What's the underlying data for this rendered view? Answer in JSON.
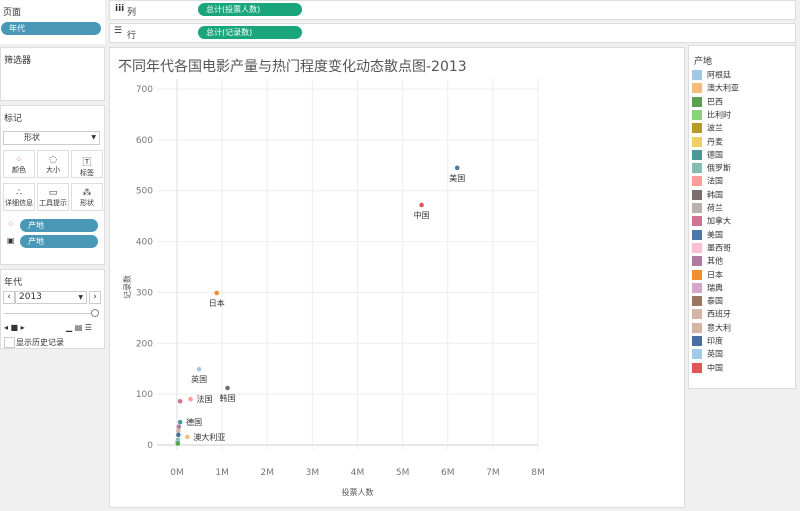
{
  "pages": {
    "title": "页面",
    "pill": "年代"
  },
  "columns": {
    "icon": "columns-icon",
    "label": "列",
    "pill": "总计(投票人数)"
  },
  "rows": {
    "icon": "rows-icon",
    "label": "行",
    "pill": "总计(记录数)"
  },
  "filters": {
    "title": "筛选器"
  },
  "marks": {
    "title": "标记",
    "type": "形状",
    "buttons": [
      "颜色",
      "大小",
      "标签",
      "详细信息",
      "工具提示",
      "形状"
    ],
    "pills": [
      "产地",
      "产地"
    ]
  },
  "year": {
    "title": "年代",
    "value": "2013",
    "history": "显示历史记录"
  },
  "legend": {
    "title": "产地",
    "items": [
      {
        "name": "阿根廷",
        "color": "#9fc8e6"
      },
      {
        "name": "澳大利亚",
        "color": "#f9bb7c"
      },
      {
        "name": "巴西",
        "color": "#59a14f"
      },
      {
        "name": "比利时",
        "color": "#8cd17d"
      },
      {
        "name": "波兰",
        "color": "#b6992d"
      },
      {
        "name": "丹麦",
        "color": "#f1ce63"
      },
      {
        "name": "德国",
        "color": "#499894"
      },
      {
        "name": "俄罗斯",
        "color": "#86bcb6"
      },
      {
        "name": "法国",
        "color": "#ff9d9a"
      },
      {
        "name": "韩国",
        "color": "#79706e"
      },
      {
        "name": "荷兰",
        "color": "#bab0ac"
      },
      {
        "name": "加拿大",
        "color": "#d37295"
      },
      {
        "name": "美国",
        "color": "#4e79a7"
      },
      {
        "name": "墨西哥",
        "color": "#fabfd2"
      },
      {
        "name": "其他",
        "color": "#b07aa1"
      },
      {
        "name": "日本",
        "color": "#f28e2b"
      },
      {
        "name": "瑞典",
        "color": "#d4a6c8"
      },
      {
        "name": "泰国",
        "color": "#9d7660"
      },
      {
        "name": "西班牙",
        "color": "#d7b5a6"
      },
      {
        "name": "意大利",
        "color": "#d4b4a4"
      },
      {
        "name": "印度",
        "color": "#4a6f9c"
      },
      {
        "name": "英国",
        "color": "#a0cbe8"
      },
      {
        "name": "中国",
        "color": "#e15759"
      }
    ]
  },
  "chart_data": {
    "type": "scatter",
    "title": "不同年代各国电影产量与热门程度变化动态散点图-2013",
    "xlabel": "投票人数",
    "ylabel": "记录数",
    "xlim": [
      0,
      8000000
    ],
    "ylim": [
      0,
      700
    ],
    "xticks": [
      "0M",
      "1M",
      "2M",
      "3M",
      "4M",
      "5M",
      "6M",
      "7M",
      "8M"
    ],
    "yticks": [
      "0",
      "100",
      "200",
      "300",
      "400",
      "500",
      "600",
      "700"
    ],
    "grid": true,
    "points": [
      {
        "name": "美国",
        "x": 6210000,
        "y": 545,
        "label": true
      },
      {
        "name": "中国",
        "x": 5420000,
        "y": 472,
        "label": true
      },
      {
        "name": "日本",
        "x": 880000,
        "y": 299,
        "label": true
      },
      {
        "name": "英国",
        "x": 490000,
        "y": 149,
        "label": true
      },
      {
        "name": "韩国",
        "x": 1120000,
        "y": 112,
        "label": true
      },
      {
        "name": "法国",
        "x": 300000,
        "y": 90,
        "label": true
      },
      {
        "name": "加拿大",
        "x": 70000,
        "y": 86,
        "label": false
      },
      {
        "name": "德国",
        "x": 70000,
        "y": 45,
        "label": true
      },
      {
        "name": "澳大利亚",
        "x": 230000,
        "y": 16,
        "label": true
      },
      {
        "name": "其他",
        "x": 40000,
        "y": 36,
        "label": false
      },
      {
        "name": "意大利",
        "x": 30000,
        "y": 28,
        "label": false
      },
      {
        "name": "印度",
        "x": 30000,
        "y": 20,
        "label": false
      },
      {
        "name": "俄罗斯",
        "x": 20000,
        "y": 10,
        "label": false
      },
      {
        "name": "阿根廷",
        "x": 10000,
        "y": 5,
        "label": false
      },
      {
        "name": "巴西",
        "x": 20000,
        "y": 3,
        "label": false
      }
    ]
  }
}
